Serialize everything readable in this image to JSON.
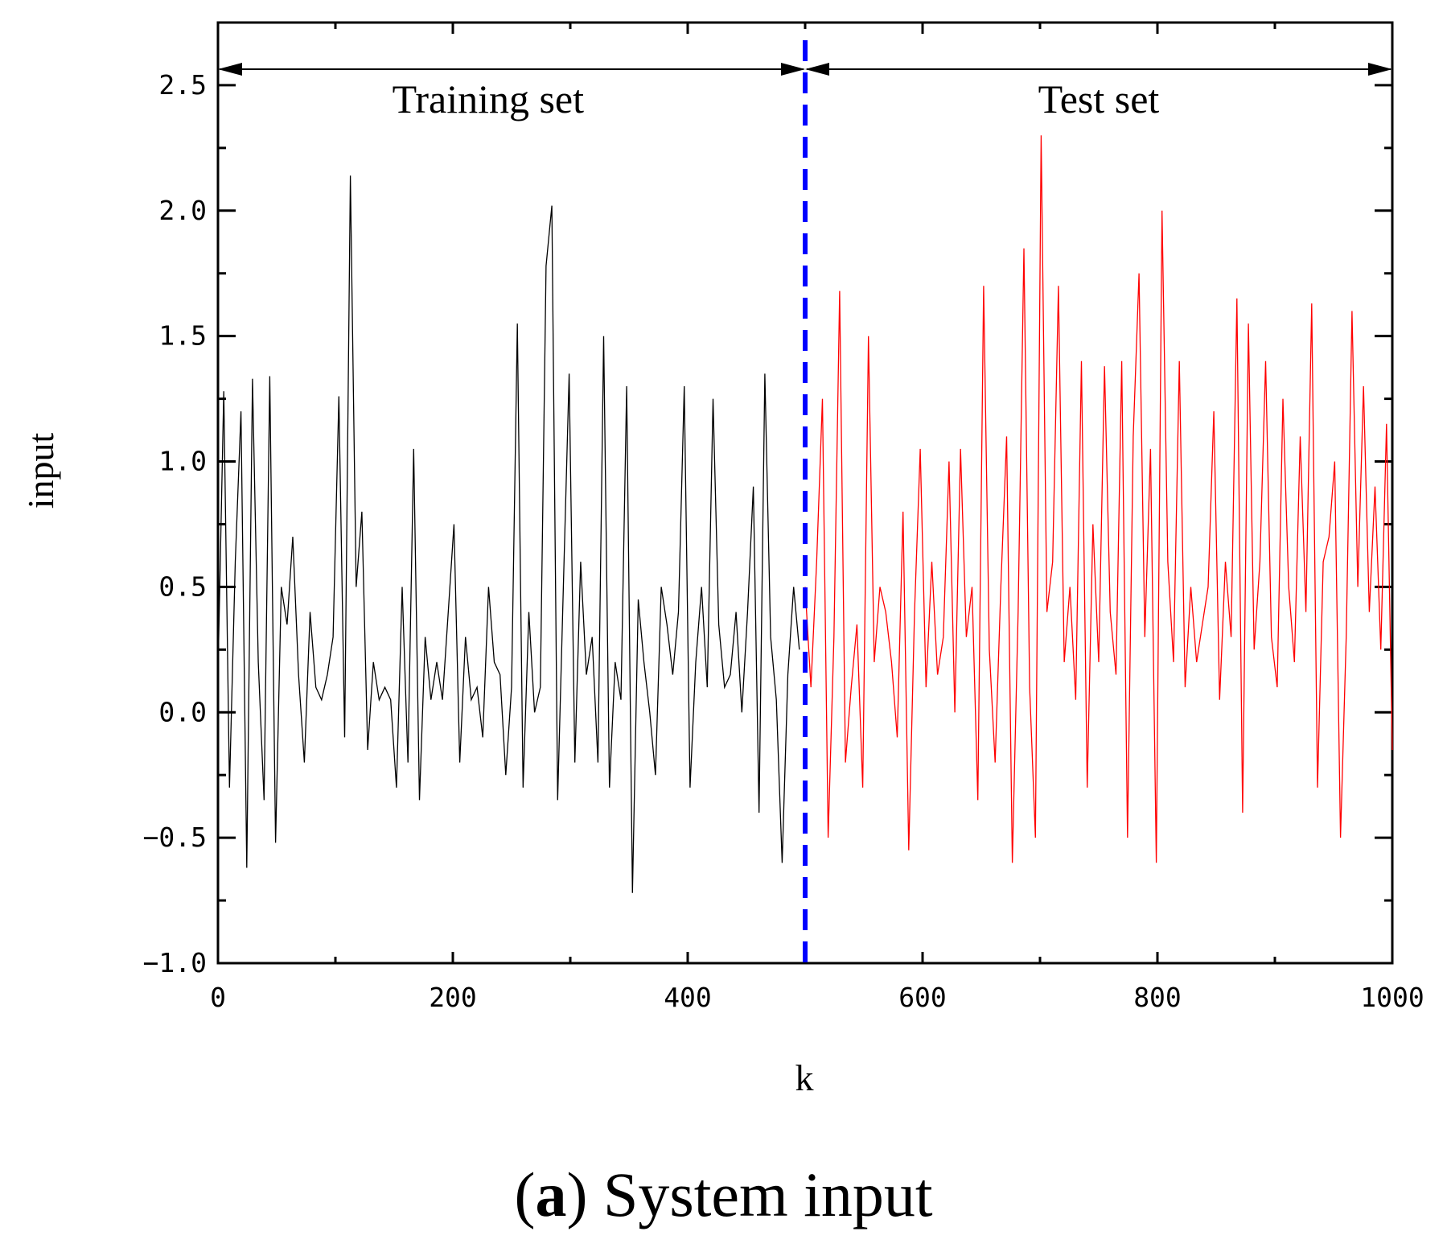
{
  "caption": {
    "letter": "a",
    "text": "System input"
  },
  "chart_data": {
    "type": "line",
    "xlabel": "k",
    "ylabel": "input",
    "xlim": [
      0,
      1000
    ],
    "ylim": [
      -1.0,
      2.75
    ],
    "x_ticks": [
      0,
      200,
      400,
      600,
      800,
      1000
    ],
    "y_ticks": [
      -1.0,
      -0.5,
      0.0,
      0.5,
      1.0,
      1.5,
      2.0,
      2.5
    ],
    "y_tick_labels": [
      "−1.0",
      "−0.5",
      "0.0",
      "0.5",
      "1.0",
      "1.5",
      "2.0",
      "2.5"
    ],
    "split_k": 500,
    "regions": [
      {
        "label": "Training set",
        "from": 0,
        "to": 500
      },
      {
        "label": "Test set",
        "from": 500,
        "to": 1000
      }
    ],
    "colors": {
      "train": "#000000",
      "test": "#ff0000",
      "split": "#0000ff"
    },
    "series": [
      {
        "sampling": "every 5 steps from k=0",
        "values": [
          0.15,
          1.28,
          -0.3,
          0.6,
          1.2,
          -0.62,
          1.33,
          0.2,
          -0.35,
          1.34,
          -0.52,
          0.5,
          0.35,
          0.7,
          0.15,
          -0.2,
          0.4,
          0.1,
          0.05,
          0.15,
          0.3,
          1.26,
          -0.1,
          2.14,
          0.5,
          0.8,
          -0.15,
          0.2,
          0.05,
          0.1,
          0.05,
          -0.3,
          0.5,
          -0.2,
          1.05,
          -0.35,
          0.3,
          0.05,
          0.2,
          0.05,
          0.4,
          0.75,
          -0.2,
          0.3,
          0.05,
          0.1,
          -0.1,
          0.5,
          0.2,
          0.15,
          -0.25,
          0.1,
          1.55,
          -0.3,
          0.4,
          0.0,
          0.1,
          1.78,
          2.02,
          -0.35,
          0.5,
          1.35,
          -0.2,
          0.6,
          0.15,
          0.3,
          -0.2,
          1.5,
          -0.3,
          0.2,
          0.05,
          1.3,
          -0.72,
          0.45,
          0.2,
          0.0,
          -0.25,
          0.5,
          0.35,
          0.15,
          0.4,
          1.3,
          -0.3,
          0.2,
          0.5,
          0.1,
          1.25,
          0.35,
          0.1,
          0.15,
          0.4,
          0.0,
          0.4,
          0.9,
          -0.4,
          1.35,
          0.3,
          0.05,
          -0.6,
          0.15,
          0.5,
          0.25,
          0.5,
          0.1,
          0.6,
          1.25,
          -0.5,
          0.3,
          1.68,
          -0.2,
          0.1,
          0.35,
          -0.3,
          1.5,
          0.2,
          0.5,
          0.4,
          0.2,
          -0.1,
          0.8,
          -0.55,
          0.4,
          1.05,
          0.1,
          0.6,
          0.15,
          0.3,
          1.0,
          0.0,
          1.05,
          0.3,
          0.5,
          -0.35,
          1.7,
          0.25,
          -0.2,
          0.5,
          1.1,
          -0.6,
          0.4,
          1.85,
          0.1,
          -0.5,
          2.3,
          0.4,
          0.6,
          1.7,
          0.2,
          0.5,
          0.05,
          1.4,
          -0.3,
          0.75,
          0.2,
          1.38,
          0.4,
          0.15,
          1.4,
          -0.5,
          1.1,
          1.75,
          0.3,
          1.05,
          -0.6,
          2.0,
          0.6,
          0.2,
          1.4,
          0.1,
          0.5,
          0.2,
          0.35,
          0.5,
          1.2,
          0.05,
          0.6,
          0.3,
          1.65,
          -0.4,
          1.55,
          0.25,
          0.6,
          1.4,
          0.3,
          0.1,
          1.25,
          0.5,
          0.2,
          1.1,
          0.4,
          1.63,
          -0.3,
          0.6,
          0.7,
          1.0,
          -0.5,
          0.3,
          1.6,
          0.5,
          1.3,
          0.4,
          0.9,
          0.25,
          1.15,
          -0.15
        ]
      }
    ]
  }
}
